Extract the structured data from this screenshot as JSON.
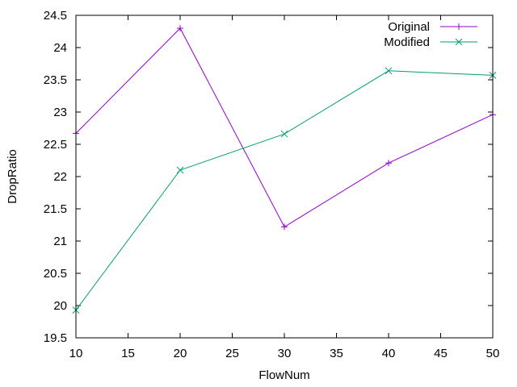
{
  "chart_data": {
    "type": "line",
    "title": "",
    "xlabel": "FlowNum",
    "ylabel": "DropRatio",
    "xlim": [
      10,
      50
    ],
    "ylim": [
      19.5,
      24.5
    ],
    "xticks": [
      "10",
      "15",
      "20",
      "25",
      "30",
      "35",
      "40",
      "45",
      "50"
    ],
    "yticks": [
      "19.5",
      "20",
      "20.5",
      "21",
      "21.5",
      "22",
      "22.5",
      "23",
      "23.5",
      "24",
      "24.5"
    ],
    "grid": false,
    "legend_position": "top-right",
    "x": [
      10,
      20,
      30,
      40,
      50
    ],
    "series": [
      {
        "name": "Original",
        "color": "#9400d3",
        "marker": "plus",
        "values": [
          22.67,
          24.3,
          21.22,
          22.21,
          22.96
        ]
      },
      {
        "name": "Modified",
        "color": "#009e73",
        "marker": "cross",
        "values": [
          19.93,
          22.1,
          22.66,
          23.64,
          23.57
        ]
      }
    ]
  }
}
